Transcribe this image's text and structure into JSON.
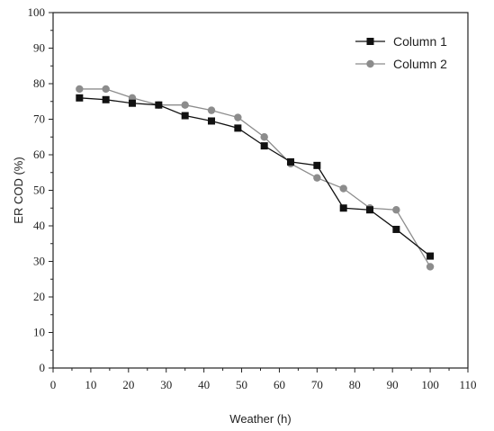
{
  "chart_data": {
    "type": "line",
    "title": "",
    "xlabel": "Weather  (h)",
    "ylabel": "ER COD (%)",
    "xlim": [
      0,
      110
    ],
    "ylim": [
      0,
      100
    ],
    "xticks": [
      0,
      10,
      20,
      30,
      40,
      50,
      60,
      70,
      80,
      90,
      100,
      110
    ],
    "yticks": [
      0,
      10,
      20,
      30,
      40,
      50,
      60,
      70,
      80,
      90,
      100
    ],
    "grid": false,
    "legend_position": "top-right",
    "series": [
      {
        "name": "Column 1",
        "marker": "square",
        "color": "#111111",
        "x": [
          7,
          14,
          21,
          28,
          35,
          42,
          49,
          56,
          63,
          70,
          77,
          84,
          91,
          100
        ],
        "y": [
          76,
          75.5,
          74.5,
          74,
          71,
          69.5,
          67.5,
          62.5,
          58,
          57,
          45,
          44.5,
          39,
          31.5
        ]
      },
      {
        "name": "Column 2",
        "marker": "circle",
        "color": "#8c8c8c",
        "x": [
          7,
          14,
          21,
          28,
          35,
          42,
          49,
          56,
          63,
          70,
          77,
          84,
          91,
          100
        ],
        "y": [
          78.5,
          78.5,
          76,
          74,
          74,
          72.5,
          70.5,
          65,
          57.5,
          53.5,
          50.5,
          45,
          44.5,
          28.5
        ]
      }
    ]
  }
}
